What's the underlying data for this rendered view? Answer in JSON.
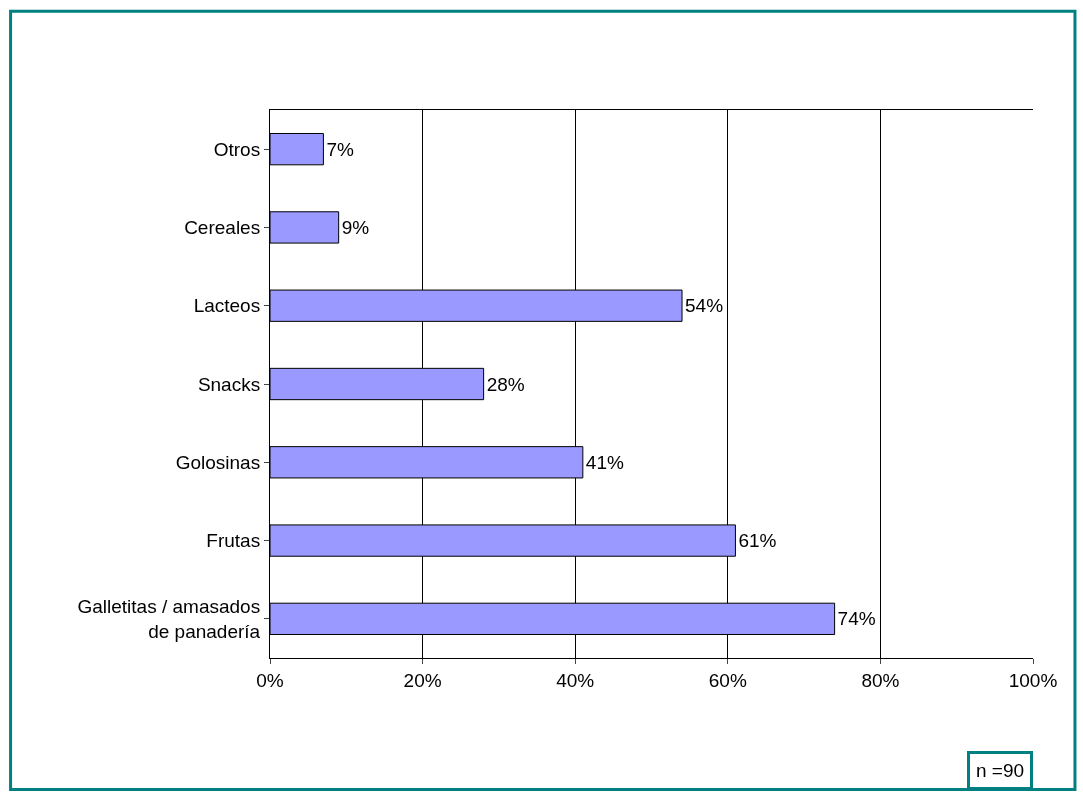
{
  "chart_data": {
    "type": "bar",
    "orientation": "horizontal",
    "categories": [
      "Otros",
      "Cereales",
      "Lacteos",
      "Snacks",
      "Golosinas",
      "Frutas",
      "Galletitas / amasados\nde panadería"
    ],
    "values": [
      7,
      9,
      54,
      28,
      41,
      61,
      74
    ],
    "value_labels": [
      "7%",
      "9%",
      "54%",
      "28%",
      "41%",
      "61%",
      "74%"
    ],
    "color": "#9999ff",
    "xlim": [
      0,
      100
    ],
    "xticks": [
      {
        "value": 0,
        "label": "0%"
      },
      {
        "value": 20,
        "label": "20%"
      },
      {
        "value": 40,
        "label": "40%"
      },
      {
        "value": 60,
        "label": "60%"
      },
      {
        "value": 80,
        "label": "80%"
      },
      {
        "value": 100,
        "label": "100%"
      }
    ],
    "grid": "x",
    "annotations": [
      "n =90"
    ]
  }
}
